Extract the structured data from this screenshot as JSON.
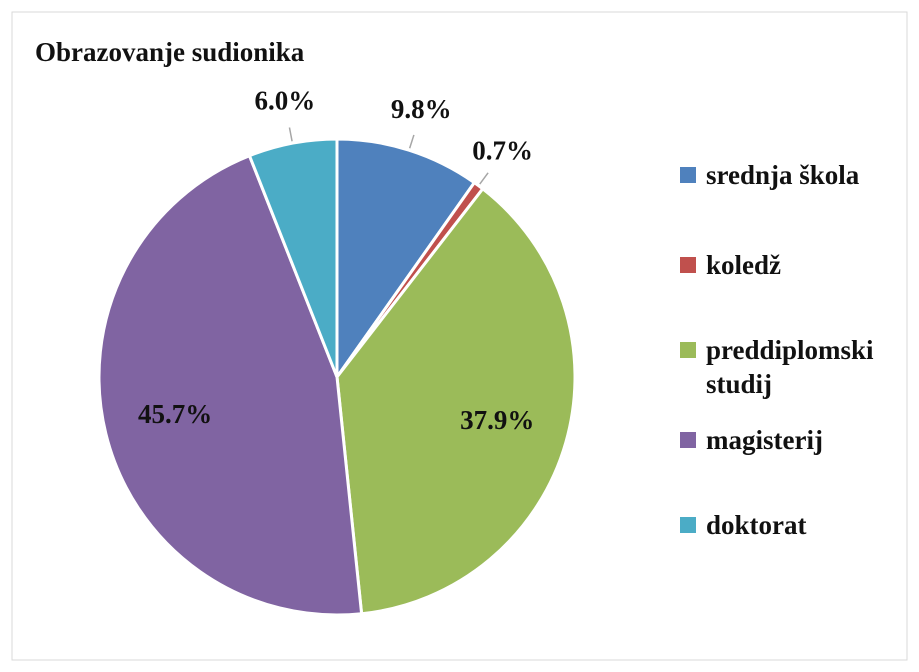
{
  "chart_data": {
    "type": "pie",
    "title": "Obrazovanje sudionika",
    "categories": [
      "srednja škola",
      "koledž",
      "preddiplomski studij",
      "magisterij",
      "doktorat"
    ],
    "values": [
      9.8,
      0.7,
      37.9,
      45.7,
      6.0
    ],
    "value_labels": [
      "9.8%",
      "0.7%",
      "37.9%",
      "45.7%",
      "6.0%"
    ],
    "colors": [
      "#4f81bd",
      "#c0504d",
      "#9bbb59",
      "#8064a2",
      "#4bacc6"
    ],
    "legend": "right"
  }
}
